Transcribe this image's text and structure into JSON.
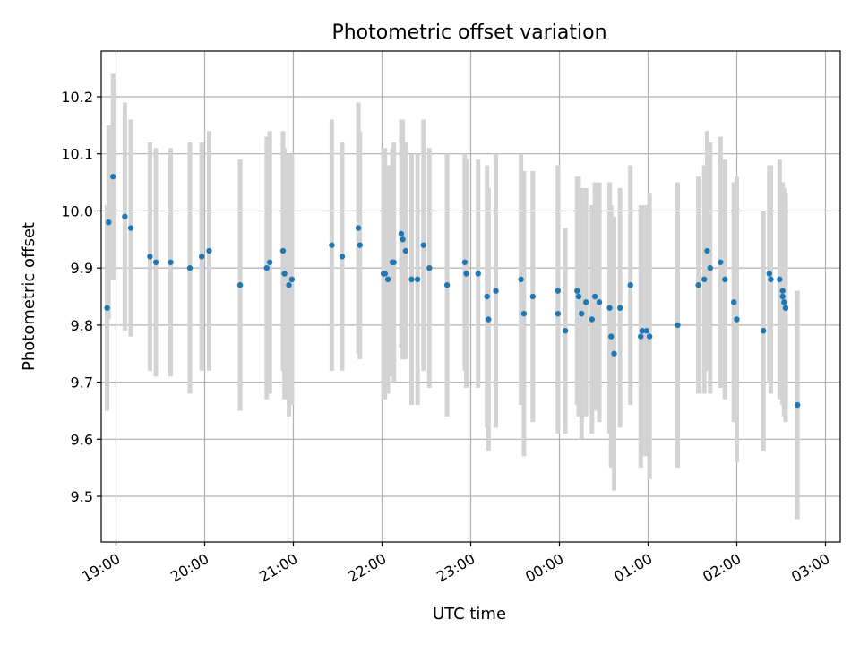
{
  "chart_data": {
    "type": "scatter",
    "title": "Photometric offset variation",
    "xlabel": "UTC time",
    "ylabel": "Photometric offset",
    "xlim": [
      "18:50",
      "03:10"
    ],
    "ylim": [
      9.42,
      10.28
    ],
    "grid": true,
    "x_ticks": [
      "19:00",
      "20:00",
      "21:00",
      "22:00",
      "23:00",
      "00:00",
      "01:00",
      "02:00",
      "03:00"
    ],
    "y_ticks": [
      9.5,
      9.6,
      9.7,
      9.8,
      9.9,
      10.0,
      10.1,
      10.2
    ],
    "colors": {
      "points": "#1f77b4",
      "error_bars": "#d3d3d3",
      "grid": "#b0b0b0"
    },
    "series": [
      {
        "x": [
          "18:54",
          "18:55",
          "18:58",
          "19:06",
          "19:10",
          "19:23",
          "19:27",
          "19:37",
          "19:50",
          "19:58",
          "20:03",
          "20:24",
          "20:42",
          "20:44",
          "20:53",
          "20:54",
          "20:57",
          "20:59",
          "21:26",
          "21:33",
          "21:44",
          "21:45",
          "22:01",
          "22:02",
          "22:04",
          "22:07",
          "22:08",
          "22:13",
          "22:14",
          "22:16",
          "22:20",
          "22:24",
          "22:28",
          "22:32",
          "22:44",
          "22:56",
          "22:57",
          "23:05",
          "23:11",
          "23:12",
          "23:17",
          "23:34",
          "23:36",
          "23:42",
          "23:59",
          "23:59",
          "00:04",
          "00:12",
          "00:13",
          "00:15",
          "00:18",
          "00:22",
          "00:24",
          "00:27",
          "00:34",
          "00:35",
          "00:37",
          "00:41",
          "00:48",
          "00:55",
          "00:56",
          "00:59",
          "01:01",
          "01:20",
          "01:34",
          "01:38",
          "01:40",
          "01:42",
          "01:49",
          "01:52",
          "01:58",
          "02:00",
          "02:18",
          "02:22",
          "02:23",
          "02:29",
          "02:31",
          "02:31",
          "02:32",
          "02:33",
          "02:33",
          "02:41"
        ],
        "y": [
          9.83,
          9.98,
          10.06,
          9.99,
          9.97,
          9.92,
          9.91,
          9.91,
          9.9,
          9.92,
          9.93,
          9.87,
          9.9,
          9.91,
          9.93,
          9.89,
          9.87,
          9.88,
          9.94,
          9.92,
          9.97,
          9.94,
          9.89,
          9.89,
          9.88,
          9.91,
          9.91,
          9.96,
          9.95,
          9.93,
          9.88,
          9.88,
          9.94,
          9.9,
          9.87,
          9.91,
          9.89,
          9.89,
          9.85,
          9.81,
          9.86,
          9.88,
          9.82,
          9.85,
          9.82,
          9.86,
          9.79,
          9.86,
          9.85,
          9.82,
          9.84,
          9.81,
          9.85,
          9.84,
          9.83,
          9.78,
          9.75,
          9.83,
          9.87,
          9.78,
          9.79,
          9.79,
          9.78,
          9.8,
          9.87,
          9.88,
          9.93,
          9.9,
          9.91,
          9.88,
          9.84,
          9.81,
          9.79,
          9.89,
          9.88,
          9.88,
          9.86,
          9.85,
          9.84,
          9.83,
          9.83,
          9.66
        ],
        "yerr": [
          0.18,
          0.17,
          0.18,
          0.2,
          0.19,
          0.2,
          0.2,
          0.2,
          0.22,
          0.2,
          0.21,
          0.22,
          0.23,
          0.23,
          0.21,
          0.22,
          0.23,
          0.22,
          0.22,
          0.2,
          0.22,
          0.2,
          0.22,
          0.22,
          0.2,
          0.2,
          0.21,
          0.2,
          0.21,
          0.19,
          0.22,
          0.22,
          0.22,
          0.21,
          0.23,
          0.19,
          0.2,
          0.2,
          0.23,
          0.23,
          0.24,
          0.22,
          0.25,
          0.22,
          0.21,
          0.22,
          0.18,
          0.2,
          0.21,
          0.22,
          0.2,
          0.2,
          0.2,
          0.21,
          0.22,
          0.23,
          0.24,
          0.21,
          0.21,
          0.23,
          0.22,
          0.22,
          0.25,
          0.25,
          0.19,
          0.2,
          0.21,
          0.22,
          0.22,
          0.21,
          0.21,
          0.25,
          0.21,
          0.19,
          0.2,
          0.21,
          0.19,
          0.19,
          0.2,
          0.2,
          0.19,
          0.2
        ]
      }
    ]
  }
}
